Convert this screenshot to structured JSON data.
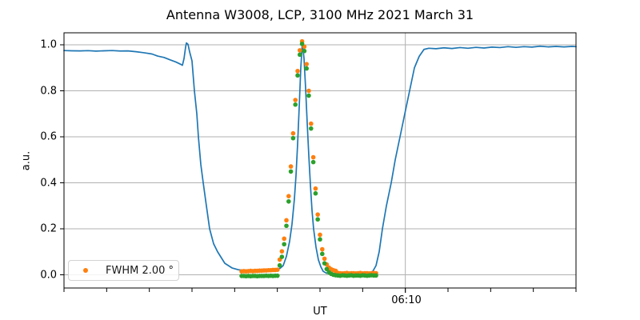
{
  "figure": {
    "background_color": "#ffffff"
  },
  "chart_data": {
    "type": "line",
    "title": "Antenna W3008, LCP, 3100 MHz 2021 March 31",
    "xlabel": "UT",
    "ylabel": "a.u.",
    "ylim": [
      -0.06,
      1.05
    ],
    "grid": true,
    "colors": {
      "scan_line": "#1f77b4",
      "fit_scatter": "#ff7f0e",
      "data_scatter": "#2ca02c",
      "grid": "#b0b0b0",
      "spine": "#000000"
    },
    "x_axis": {
      "minor_tick_count": 13,
      "major_tick_index": 8,
      "major_tick_label": "06:10",
      "unit": "fraction of axis width, only 06:10 labeled"
    },
    "y_axis": {
      "ticks": [
        0.0,
        0.2,
        0.4,
        0.6,
        0.8,
        1.0
      ],
      "tick_labels": [
        "0.0",
        "0.2",
        "0.4",
        "0.6",
        "0.8",
        "1.0"
      ]
    },
    "legend": {
      "label": "FWHM 2.00 °",
      "marker": "dot",
      "marker_color": "#ff7f0e",
      "position": "lower left"
    },
    "series": [
      {
        "name": "antenna-scan",
        "type": "line",
        "color": "#1f77b4",
        "points": [
          [
            0.0,
            0.975
          ],
          [
            0.0156,
            0.974
          ],
          [
            0.0313,
            0.9735
          ],
          [
            0.0469,
            0.9745
          ],
          [
            0.0625,
            0.9725
          ],
          [
            0.0781,
            0.974
          ],
          [
            0.0938,
            0.975
          ],
          [
            0.1094,
            0.973
          ],
          [
            0.125,
            0.9735
          ],
          [
            0.1406,
            0.97
          ],
          [
            0.1563,
            0.9655
          ],
          [
            0.1719,
            0.96
          ],
          [
            0.1828,
            0.951
          ],
          [
            0.1953,
            0.945
          ],
          [
            0.2078,
            0.934
          ],
          [
            0.2188,
            0.925
          ],
          [
            0.2281,
            0.915
          ],
          [
            0.2313,
            0.911
          ],
          [
            0.2344,
            0.94
          ],
          [
            0.2375,
            0.99
          ],
          [
            0.2391,
            1.008
          ],
          [
            0.2422,
            1.002
          ],
          [
            0.2453,
            0.97
          ],
          [
            0.25,
            0.93
          ],
          [
            0.2547,
            0.8
          ],
          [
            0.2594,
            0.7
          ],
          [
            0.2625,
            0.6
          ],
          [
            0.2672,
            0.48
          ],
          [
            0.2719,
            0.4
          ],
          [
            0.2781,
            0.3
          ],
          [
            0.2844,
            0.2
          ],
          [
            0.2922,
            0.135
          ],
          [
            0.3,
            0.1
          ],
          [
            0.3141,
            0.05
          ],
          [
            0.3281,
            0.03
          ],
          [
            0.3406,
            0.022
          ],
          [
            0.3594,
            0.018
          ],
          [
            0.3781,
            0.0185
          ],
          [
            0.3969,
            0.021
          ],
          [
            0.4125,
            0.0235
          ],
          [
            0.4219,
            0.028
          ],
          [
            0.4281,
            0.04
          ],
          [
            0.4344,
            0.08
          ],
          [
            0.4406,
            0.145
          ],
          [
            0.4453,
            0.22
          ],
          [
            0.45,
            0.33
          ],
          [
            0.4531,
            0.43
          ],
          [
            0.4563,
            0.57
          ],
          [
            0.4594,
            0.73
          ],
          [
            0.4625,
            0.9
          ],
          [
            0.4656,
            1.01
          ],
          [
            0.4688,
            0.94
          ],
          [
            0.4719,
            0.81
          ],
          [
            0.475,
            0.66
          ],
          [
            0.4781,
            0.52
          ],
          [
            0.4813,
            0.39
          ],
          [
            0.4844,
            0.28
          ],
          [
            0.4875,
            0.2
          ],
          [
            0.4922,
            0.12
          ],
          [
            0.4969,
            0.065
          ],
          [
            0.5016,
            0.035
          ],
          [
            0.5063,
            0.015
          ],
          [
            0.5125,
            0.007
          ],
          [
            0.5234,
            0.005
          ],
          [
            0.5344,
            0.006
          ],
          [
            0.5469,
            0.005
          ],
          [
            0.5578,
            0.01
          ],
          [
            0.5688,
            0.006
          ],
          [
            0.5813,
            0.005
          ],
          [
            0.5938,
            0.007
          ],
          [
            0.6031,
            0.015
          ],
          [
            0.6094,
            0.04
          ],
          [
            0.6156,
            0.1
          ],
          [
            0.6219,
            0.2
          ],
          [
            0.6297,
            0.3
          ],
          [
            0.6391,
            0.4
          ],
          [
            0.6469,
            0.5
          ],
          [
            0.6563,
            0.6
          ],
          [
            0.6656,
            0.7
          ],
          [
            0.675,
            0.8
          ],
          [
            0.6844,
            0.9
          ],
          [
            0.6938,
            0.95
          ],
          [
            0.7031,
            0.98
          ],
          [
            0.7125,
            0.985
          ],
          [
            0.7266,
            0.983
          ],
          [
            0.7422,
            0.987
          ],
          [
            0.7578,
            0.984
          ],
          [
            0.7734,
            0.988
          ],
          [
            0.7891,
            0.985
          ],
          [
            0.8047,
            0.989
          ],
          [
            0.8203,
            0.986
          ],
          [
            0.8359,
            0.99
          ],
          [
            0.8516,
            0.988
          ],
          [
            0.8672,
            0.992
          ],
          [
            0.8828,
            0.989
          ],
          [
            0.8984,
            0.992
          ],
          [
            0.9141,
            0.99
          ],
          [
            0.9297,
            0.994
          ],
          [
            0.9453,
            0.991
          ],
          [
            0.9609,
            0.993
          ],
          [
            0.9766,
            0.991
          ],
          [
            0.9922,
            0.993
          ],
          [
            1.0,
            0.992
          ]
        ]
      },
      {
        "name": "gaussian-fit",
        "type": "scatter",
        "color": "#ff7f0e",
        "legend_label": "FWHM 2.00 °",
        "points": [
          [
            0.3469,
            0.015
          ],
          [
            0.3513,
            0.016
          ],
          [
            0.3556,
            0.015
          ],
          [
            0.36,
            0.016
          ],
          [
            0.3644,
            0.017
          ],
          [
            0.3688,
            0.016
          ],
          [
            0.3731,
            0.017
          ],
          [
            0.3775,
            0.017
          ],
          [
            0.3819,
            0.018
          ],
          [
            0.3863,
            0.018
          ],
          [
            0.3906,
            0.019
          ],
          [
            0.395,
            0.019
          ],
          [
            0.3994,
            0.02
          ],
          [
            0.4038,
            0.02
          ],
          [
            0.4081,
            0.021
          ],
          [
            0.4125,
            0.021
          ],
          [
            0.4169,
            0.022
          ],
          [
            0.4213,
            0.066
          ],
          [
            0.4256,
            0.102
          ],
          [
            0.43,
            0.157
          ],
          [
            0.4344,
            0.237
          ],
          [
            0.4388,
            0.342
          ],
          [
            0.4431,
            0.471
          ],
          [
            0.4475,
            0.615
          ],
          [
            0.4519,
            0.76
          ],
          [
            0.4563,
            0.886
          ],
          [
            0.4606,
            0.976
          ],
          [
            0.465,
            1.015
          ],
          [
            0.4694,
            0.992
          ],
          [
            0.4738,
            0.916
          ],
          [
            0.4781,
            0.8
          ],
          [
            0.4825,
            0.657
          ],
          [
            0.4869,
            0.511
          ],
          [
            0.4913,
            0.375
          ],
          [
            0.4956,
            0.262
          ],
          [
            0.5,
            0.174
          ],
          [
            0.5044,
            0.111
          ],
          [
            0.5088,
            0.07
          ],
          [
            0.5131,
            0.045
          ],
          [
            0.5175,
            0.031
          ],
          [
            0.5219,
            0.024
          ],
          [
            0.5263,
            0.02
          ],
          [
            0.5306,
            0.017
          ],
          [
            0.535,
            0.008
          ],
          [
            0.5394,
            0.007
          ],
          [
            0.5438,
            0.006
          ],
          [
            0.5481,
            0.007
          ],
          [
            0.5525,
            0.008
          ],
          [
            0.5569,
            0.006
          ],
          [
            0.5613,
            0.007
          ],
          [
            0.5656,
            0.007
          ],
          [
            0.57,
            0.006
          ],
          [
            0.5744,
            0.007
          ],
          [
            0.5788,
            0.008
          ],
          [
            0.5831,
            0.006
          ],
          [
            0.5875,
            0.007
          ],
          [
            0.5919,
            0.007
          ],
          [
            0.5963,
            0.006
          ],
          [
            0.6006,
            0.007
          ],
          [
            0.605,
            0.008
          ],
          [
            0.6094,
            0.007
          ]
        ]
      },
      {
        "name": "scan-data-points",
        "type": "scatter",
        "color": "#2ca02c",
        "points": [
          [
            0.3469,
            -0.005
          ],
          [
            0.3513,
            -0.005
          ],
          [
            0.3556,
            -0.006
          ],
          [
            0.36,
            -0.005
          ],
          [
            0.3644,
            -0.006
          ],
          [
            0.3688,
            -0.005
          ],
          [
            0.3731,
            -0.005
          ],
          [
            0.3775,
            -0.006
          ],
          [
            0.3819,
            -0.005
          ],
          [
            0.3863,
            -0.005
          ],
          [
            0.3906,
            -0.005
          ],
          [
            0.395,
            -0.004
          ],
          [
            0.3994,
            -0.005
          ],
          [
            0.4038,
            -0.004
          ],
          [
            0.4081,
            -0.005
          ],
          [
            0.4125,
            -0.004
          ],
          [
            0.4169,
            -0.004
          ],
          [
            0.4213,
            0.041
          ],
          [
            0.4256,
            0.078
          ],
          [
            0.43,
            0.133
          ],
          [
            0.4344,
            0.213
          ],
          [
            0.4388,
            0.319
          ],
          [
            0.4431,
            0.449
          ],
          [
            0.4475,
            0.594
          ],
          [
            0.4519,
            0.74
          ],
          [
            0.4563,
            0.867
          ],
          [
            0.4606,
            0.957
          ],
          [
            0.465,
            1.004
          ],
          [
            0.4694,
            0.973
          ],
          [
            0.4738,
            0.897
          ],
          [
            0.4781,
            0.779
          ],
          [
            0.4825,
            0.636
          ],
          [
            0.4869,
            0.49
          ],
          [
            0.4913,
            0.354
          ],
          [
            0.4956,
            0.241
          ],
          [
            0.5,
            0.154
          ],
          [
            0.5044,
            0.091
          ],
          [
            0.5088,
            0.05
          ],
          [
            0.5131,
            0.025
          ],
          [
            0.5175,
            0.011
          ],
          [
            0.5219,
            0.004
          ],
          [
            0.5263,
            0.0
          ],
          [
            0.5306,
            -0.002
          ],
          [
            0.535,
            -0.003
          ],
          [
            0.5394,
            -0.004
          ],
          [
            0.5438,
            -0.002
          ],
          [
            0.5481,
            -0.003
          ],
          [
            0.5525,
            -0.004
          ],
          [
            0.5569,
            -0.003
          ],
          [
            0.5613,
            -0.002
          ],
          [
            0.5656,
            -0.004
          ],
          [
            0.57,
            -0.003
          ],
          [
            0.5744,
            -0.003
          ],
          [
            0.5788,
            -0.004
          ],
          [
            0.5831,
            -0.002
          ],
          [
            0.5875,
            -0.003
          ],
          [
            0.5919,
            -0.004
          ],
          [
            0.5963,
            -0.003
          ],
          [
            0.6006,
            -0.002
          ],
          [
            0.605,
            -0.003
          ],
          [
            0.6094,
            -0.003
          ]
        ]
      }
    ]
  }
}
